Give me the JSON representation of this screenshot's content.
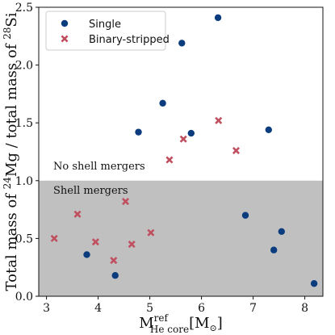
{
  "chart_data": {
    "type": "scatter",
    "xlabel": {
      "main": "M",
      "sup": "ref",
      "sub": "He core",
      "unit": "[M",
      "unit_close": "]"
    },
    "ylabel": {
      "p1": "Total mass of ",
      "sup1": "24",
      "p2": "Mg / total mass of ",
      "sup2": "28",
      "p3": "Si"
    },
    "xlim": [
      2.85,
      8.35
    ],
    "ylim": [
      0.0,
      2.5
    ],
    "xticks": [
      "3",
      "4",
      "5",
      "6",
      "7",
      "8"
    ],
    "yticks": [
      "0.0",
      "0.5",
      "1.0",
      "1.5",
      "2.0",
      "2.5"
    ],
    "grid": false,
    "threshold": 1.0,
    "regions": {
      "above": "No shell mergers",
      "below": "Shell mergers"
    },
    "region_colors": {
      "below": "#c0c0c0",
      "above": "#ffffff"
    },
    "legend_position": "top-left",
    "series": [
      {
        "name": "Single",
        "marker": "circle",
        "color": "#0b3d7e",
        "points": [
          [
            3.78,
            0.36
          ],
          [
            4.33,
            0.18
          ],
          [
            4.78,
            1.42
          ],
          [
            5.25,
            1.67
          ],
          [
            5.62,
            2.19
          ],
          [
            5.8,
            1.41
          ],
          [
            6.32,
            2.41
          ],
          [
            6.85,
            0.7
          ],
          [
            7.3,
            1.44
          ],
          [
            7.4,
            0.4
          ],
          [
            7.55,
            0.56
          ],
          [
            8.18,
            0.11
          ]
        ]
      },
      {
        "name": "Binary-stripped",
        "marker": "x",
        "color": "#c0505f",
        "points": [
          [
            3.15,
            0.5
          ],
          [
            3.6,
            0.71
          ],
          [
            3.95,
            0.47
          ],
          [
            4.3,
            0.31
          ],
          [
            4.53,
            0.82
          ],
          [
            4.65,
            0.45
          ],
          [
            5.02,
            0.55
          ],
          [
            5.38,
            1.18
          ],
          [
            5.65,
            1.36
          ],
          [
            6.33,
            1.52
          ],
          [
            6.67,
            1.26
          ]
        ]
      }
    ]
  }
}
